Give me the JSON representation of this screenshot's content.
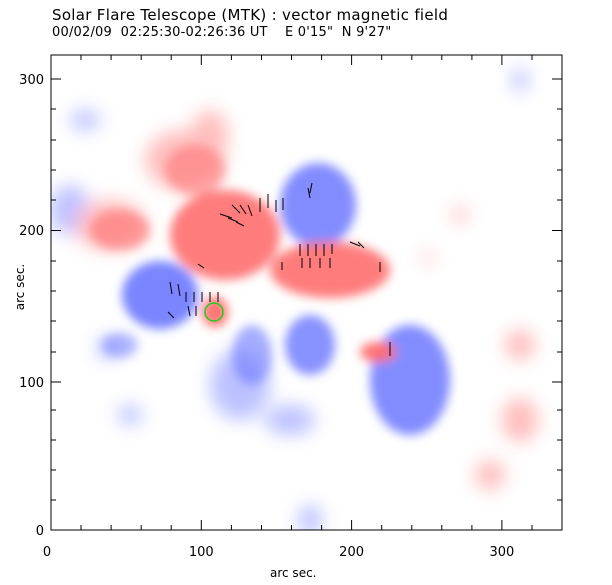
{
  "header": {
    "title": "Solar Flare Telescope (MTK) : vector magnetic field",
    "subtitle": "00/02/09  02:25:30-02:26:36 UT    E 0'15\"  N 9'27\""
  },
  "axes": {
    "xlabel": "arc sec.",
    "ylabel": "arc sec.",
    "xticks": [
      "0",
      "100",
      "200",
      "300"
    ],
    "yticks": [
      "0",
      "100",
      "200",
      "300"
    ]
  },
  "colors": {
    "positive": "#ff6e6e",
    "negative": "#6c78ff",
    "marker": "#22cc22",
    "vector": "#000000"
  },
  "chart_data": {
    "type": "heatmap",
    "xlim": [
      0,
      340
    ],
    "ylim": [
      0,
      315
    ],
    "x_ticks": [
      0,
      100,
      200,
      300
    ],
    "y_ticks": [
      0,
      100,
      200,
      300
    ]
  }
}
